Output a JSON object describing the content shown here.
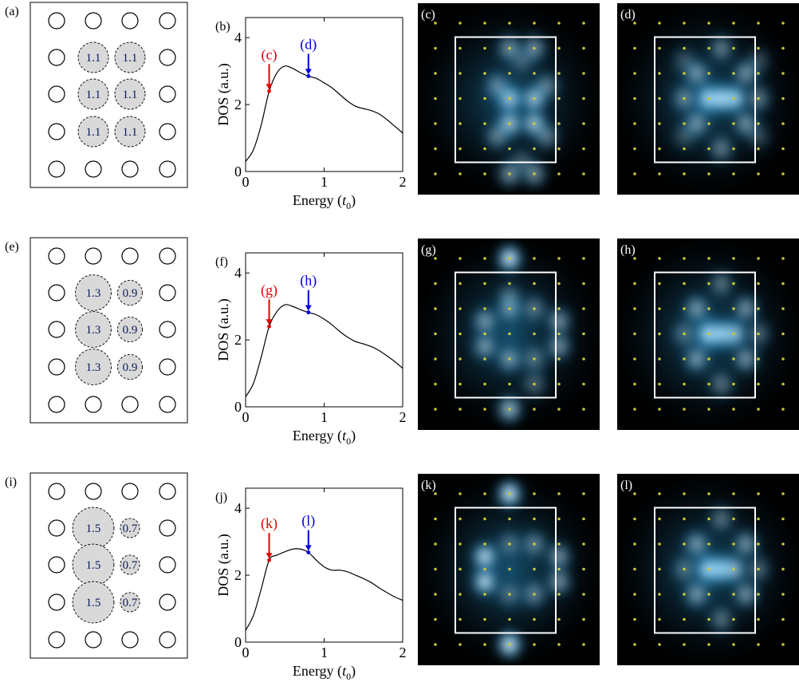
{
  "colors": {
    "red": "#e00000",
    "blue": "#0000dd",
    "site_fill": "#d9d9d9",
    "site_label": "#0a1a5a",
    "map_bg": "#000000",
    "map_glow": "#3aa8e0",
    "atom_dot": "#c8c832",
    "box": "#ffffff"
  },
  "rows": [
    {
      "lattice_label": "(a)",
      "dos_label": "(b)",
      "map_labels": [
        "(c)",
        "(d)"
      ],
      "marker_labels": [
        "(c)",
        "(d)"
      ],
      "sites": {
        "left": "1.1",
        "right": "1.1"
      },
      "site_scale": {
        "left": 1.1,
        "right": 1.1
      },
      "maps": [
        [
          [
            1,
            3,
            0.8
          ],
          [
            1,
            4,
            0.8
          ],
          [
            2,
            3,
            0.8
          ],
          [
            2,
            4,
            0.8
          ],
          [
            1,
            1,
            0.6
          ],
          [
            2,
            1,
            0.6
          ],
          [
            1,
            6,
            0.6
          ],
          [
            2,
            6,
            0.6
          ],
          [
            0.5,
            2.5,
            0.5
          ],
          [
            2.5,
            2.5,
            0.5
          ],
          [
            0.5,
            4.5,
            0.5
          ],
          [
            2.5,
            4.5,
            0.5
          ],
          [
            1.5,
            1.5,
            0.35
          ],
          [
            1.5,
            5.5,
            0.35
          ]
        ],
        [
          [
            1,
            3,
            1.0
          ],
          [
            2,
            3,
            1.0
          ],
          [
            1.5,
            3,
            0.9
          ],
          [
            0,
            3,
            0.5
          ],
          [
            3,
            3,
            0.5
          ],
          [
            0.5,
            2,
            0.6
          ],
          [
            2.5,
            2,
            0.6
          ],
          [
            0.5,
            4,
            0.6
          ],
          [
            2.5,
            4,
            0.6
          ],
          [
            1.5,
            1,
            0.5
          ],
          [
            1.5,
            5,
            0.5
          ],
          [
            0,
            1.5,
            0.3
          ],
          [
            3,
            1.5,
            0.3
          ],
          [
            0,
            4.5,
            0.3
          ],
          [
            3,
            4.5,
            0.3
          ]
        ]
      ]
    },
    {
      "lattice_label": "(e)",
      "dos_label": "(f)",
      "map_labels": [
        "(g)",
        "(h)"
      ],
      "marker_labels": [
        "(g)",
        "(h)"
      ],
      "sites": {
        "left": "1.3",
        "right": "0.9"
      },
      "site_scale": {
        "left": 1.3,
        "right": 0.9
      },
      "maps": [
        [
          [
            1,
            0,
            1.0
          ],
          [
            1,
            6,
            0.8
          ],
          [
            0,
            2.5,
            0.6
          ],
          [
            0,
            3.5,
            0.6
          ],
          [
            3,
            2.5,
            0.6
          ],
          [
            3,
            3.5,
            0.6
          ],
          [
            1,
            2,
            0.6
          ],
          [
            1,
            4,
            0.6
          ],
          [
            2,
            2,
            0.45
          ],
          [
            2,
            4,
            0.45
          ],
          [
            1,
            1.5,
            0.4
          ],
          [
            2,
            5,
            0.4
          ]
        ],
        [
          [
            1,
            3,
            1.0
          ],
          [
            2,
            3,
            0.9
          ],
          [
            1.5,
            3,
            0.8
          ],
          [
            0.5,
            2,
            0.6
          ],
          [
            2.5,
            2,
            0.6
          ],
          [
            0.5,
            4,
            0.6
          ],
          [
            2.5,
            4,
            0.6
          ],
          [
            0,
            3,
            0.4
          ],
          [
            3,
            3,
            0.4
          ],
          [
            1.5,
            1,
            0.45
          ],
          [
            1.5,
            5,
            0.45
          ]
        ]
      ]
    },
    {
      "lattice_label": "(i)",
      "dos_label": "(j)",
      "map_labels": [
        "(k)",
        "(l)"
      ],
      "marker_labels": [
        "(k)",
        "(l)"
      ],
      "sites": {
        "left": "1.5",
        "right": "0.7"
      },
      "site_scale": {
        "left": 1.5,
        "right": 0.7
      },
      "maps": [
        [
          [
            1,
            0,
            1.0
          ],
          [
            1,
            6,
            1.0
          ],
          [
            0,
            2.5,
            0.9
          ],
          [
            0,
            3.5,
            0.9
          ],
          [
            3,
            2.5,
            0.6
          ],
          [
            3,
            3.5,
            0.6
          ],
          [
            2,
            2,
            0.5
          ],
          [
            2,
            4,
            0.5
          ],
          [
            1,
            2,
            0.4
          ],
          [
            1,
            4,
            0.4
          ]
        ],
        [
          [
            1,
            3,
            1.0
          ],
          [
            1.5,
            3,
            0.9
          ],
          [
            2,
            3,
            0.75
          ],
          [
            0.5,
            2,
            0.6
          ],
          [
            2.5,
            2,
            0.6
          ],
          [
            0.5,
            4,
            0.6
          ],
          [
            2.5,
            4,
            0.6
          ],
          [
            0,
            3,
            0.4
          ],
          [
            3,
            3,
            0.4
          ],
          [
            1.5,
            1,
            0.45
          ],
          [
            1.5,
            5,
            0.45
          ]
        ]
      ]
    }
  ],
  "chart_data": [
    {
      "type": "line",
      "ylabel": "DOS (a.u.)",
      "xlabel_text": "Energy (",
      "xlabel_unit": "t",
      "xlabel_sub": "0",
      "xlabel_close": ")",
      "xlim": [
        0,
        2
      ],
      "ylim": [
        0,
        4.6
      ],
      "xticks": [
        0,
        1,
        2
      ],
      "yticks": [
        0,
        2,
        4
      ],
      "x": [
        0.0,
        0.1,
        0.2,
        0.3,
        0.4,
        0.5,
        0.6,
        0.7,
        0.8,
        0.9,
        1.0,
        1.1,
        1.2,
        1.3,
        1.4,
        1.5,
        1.6,
        1.7,
        1.8,
        1.9,
        2.0
      ],
      "y": [
        0.3,
        0.65,
        1.4,
        2.4,
        2.95,
        3.15,
        3.08,
        2.95,
        2.85,
        2.78,
        2.65,
        2.5,
        2.3,
        2.1,
        1.95,
        1.88,
        1.82,
        1.72,
        1.55,
        1.35,
        1.15
      ],
      "markers": [
        {
          "label": "(c)",
          "x": 0.3,
          "y": 2.4,
          "color": "red"
        },
        {
          "label": "(d)",
          "x": 0.8,
          "y": 2.85,
          "color": "blue"
        }
      ]
    },
    {
      "type": "line",
      "ylabel": "DOS (a.u.)",
      "xlabel_text": "Energy (",
      "xlabel_unit": "t",
      "xlabel_sub": "0",
      "xlabel_close": ")",
      "xlim": [
        0,
        2
      ],
      "ylim": [
        0,
        4.6
      ],
      "xticks": [
        0,
        1,
        2
      ],
      "yticks": [
        0,
        2,
        4
      ],
      "x": [
        0.0,
        0.1,
        0.2,
        0.3,
        0.4,
        0.5,
        0.6,
        0.7,
        0.8,
        0.9,
        1.0,
        1.1,
        1.2,
        1.3,
        1.4,
        1.5,
        1.6,
        1.7,
        1.8,
        1.9,
        2.0
      ],
      "y": [
        0.3,
        0.7,
        1.5,
        2.4,
        2.85,
        3.05,
        3.0,
        2.9,
        2.82,
        2.75,
        2.62,
        2.45,
        2.25,
        2.08,
        1.95,
        1.88,
        1.8,
        1.68,
        1.52,
        1.35,
        1.15
      ],
      "markers": [
        {
          "label": "(g)",
          "x": 0.3,
          "y": 2.4,
          "color": "red"
        },
        {
          "label": "(h)",
          "x": 0.8,
          "y": 2.82,
          "color": "blue"
        }
      ]
    },
    {
      "type": "line",
      "ylabel": "DOS (a.u.)",
      "xlabel_text": "Energy (",
      "xlabel_unit": "t",
      "xlabel_sub": "0",
      "xlabel_close": ")",
      "xlim": [
        0,
        2
      ],
      "ylim": [
        0,
        4.6
      ],
      "xticks": [
        0,
        1,
        2
      ],
      "yticks": [
        0,
        2,
        4
      ],
      "x": [
        0.0,
        0.1,
        0.2,
        0.3,
        0.4,
        0.5,
        0.6,
        0.7,
        0.8,
        0.9,
        1.0,
        1.1,
        1.2,
        1.3,
        1.4,
        1.5,
        1.6,
        1.7,
        1.8,
        1.9,
        2.0
      ],
      "y": [
        0.35,
        0.8,
        1.6,
        2.45,
        2.6,
        2.7,
        2.78,
        2.78,
        2.68,
        2.45,
        2.25,
        2.15,
        2.15,
        2.1,
        2.0,
        1.9,
        1.78,
        1.62,
        1.48,
        1.35,
        1.25
      ],
      "markers": [
        {
          "label": "(k)",
          "x": 0.3,
          "y": 2.45,
          "color": "red"
        },
        {
          "label": "(l)",
          "x": 0.8,
          "y": 2.68,
          "color": "blue"
        }
      ]
    }
  ]
}
